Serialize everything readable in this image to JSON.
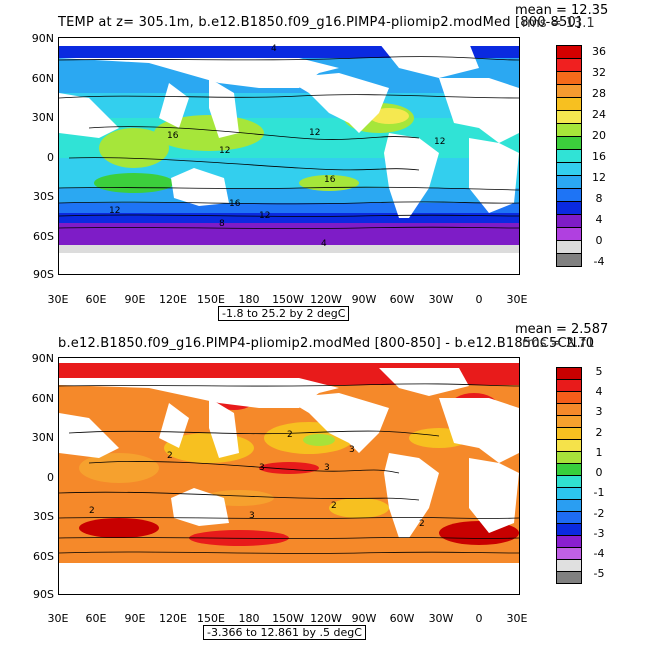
{
  "top": {
    "title": "TEMP at z= 305.1m, b.e12.B1850.f09_g16.PIMP4-pliomip2.modMed [800-850]",
    "mean": "mean = 12.35",
    "rms": "rms = 13.1",
    "range": "-1.8 to 25.2 by 2 degC",
    "colorbar": {
      "labels": [
        "36",
        "32",
        "28",
        "24",
        "20",
        "16",
        "12",
        "8",
        "4",
        "0",
        "-4"
      ],
      "colors": [
        "#d40000",
        "#f02020",
        "#f56a1a",
        "#f59a30",
        "#f7c020",
        "#f5e850",
        "#a6e63a",
        "#3ccf3c",
        "#30e3d6",
        "#33cfee",
        "#2ba8f2",
        "#1e74f5",
        "#0a2ae0",
        "#7e1cc7",
        "#b040e0",
        "#dcdcdc",
        "#808080"
      ]
    },
    "contour_labels": [
      "4",
      "16",
      "12",
      "12",
      "12",
      "16",
      "12",
      "16",
      "12",
      "8",
      "4"
    ]
  },
  "bottom": {
    "title": "b.e12.B1850.f09_g16.PIMP4-pliomip2.modMed [800-850] - b.e12.B1850C5CN.f0",
    "mean": "mean = 2.587",
    "rms": "rms = 2.71",
    "range": "-3.366 to 12.861 by .5 degC",
    "colorbar": {
      "labels": [
        "5",
        "4",
        "3",
        "2",
        "1",
        "0",
        "-1",
        "-2",
        "-3",
        "-4",
        "-5"
      ],
      "colors": [
        "#c80000",
        "#e81b1b",
        "#f55d1a",
        "#f5892a",
        "#f6a12e",
        "#f7c020",
        "#f5e24a",
        "#a8e23a",
        "#37cf3d",
        "#30e0d0",
        "#2cc6ee",
        "#2a9ef2",
        "#1e6cf4",
        "#0a2ae0",
        "#8a1fd0",
        "#c060e5",
        "#e0e0e0",
        "#808080"
      ]
    },
    "contour_labels": [
      "2",
      "3",
      "2",
      "3",
      "3",
      "2",
      "2",
      "3",
      "2"
    ]
  },
  "lat_labels": [
    "90N",
    "60N",
    "30N",
    "0",
    "30S",
    "60S",
    "90S"
  ],
  "lon_labels": [
    "30E",
    "60E",
    "90E",
    "120E",
    "150E",
    "180",
    "150W",
    "120W",
    "90W",
    "60W",
    "30W",
    "0",
    "30E"
  ]
}
